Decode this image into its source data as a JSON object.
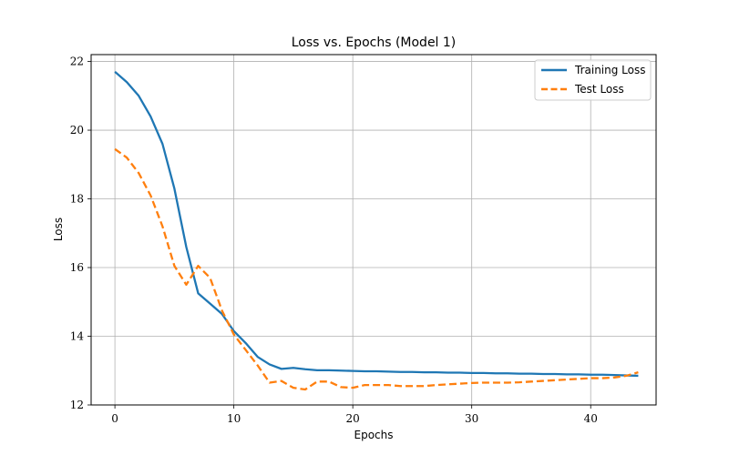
{
  "chart_data": {
    "type": "line",
    "title": "Loss vs. Epochs (Model 1)",
    "xlabel": "Epochs",
    "ylabel": "Loss",
    "xlim": [
      -2,
      45.5
    ],
    "ylim": [
      12,
      22.2
    ],
    "xticks": [
      0,
      10,
      20,
      30,
      40
    ],
    "yticks": [
      12,
      14,
      16,
      18,
      20,
      22
    ],
    "grid": true,
    "legend_position": "top-right",
    "x": [
      0,
      1,
      2,
      3,
      4,
      5,
      6,
      7,
      8,
      9,
      10,
      11,
      12,
      13,
      14,
      15,
      16,
      17,
      18,
      19,
      20,
      21,
      22,
      23,
      24,
      25,
      26,
      27,
      28,
      29,
      30,
      31,
      32,
      33,
      34,
      35,
      36,
      37,
      38,
      39,
      40,
      41,
      42,
      43,
      44
    ],
    "series": [
      {
        "name": "Training Loss",
        "color": "#1f77b4",
        "dash": "solid",
        "values": [
          21.7,
          21.4,
          21.0,
          20.4,
          19.6,
          18.3,
          16.6,
          15.25,
          14.95,
          14.65,
          14.15,
          13.8,
          13.4,
          13.18,
          13.05,
          13.08,
          13.04,
          13.01,
          13.01,
          13.0,
          12.99,
          12.98,
          12.98,
          12.97,
          12.96,
          12.96,
          12.95,
          12.95,
          12.94,
          12.94,
          12.93,
          12.93,
          12.92,
          12.92,
          12.91,
          12.91,
          12.9,
          12.9,
          12.89,
          12.89,
          12.88,
          12.88,
          12.87,
          12.86,
          12.85
        ]
      },
      {
        "name": "Test Loss",
        "color": "#ff7f0e",
        "dash": "dashed",
        "values": [
          19.45,
          19.2,
          18.75,
          18.1,
          17.2,
          16.05,
          15.5,
          16.05,
          15.7,
          14.75,
          14.05,
          13.6,
          13.15,
          12.65,
          12.7,
          12.5,
          12.45,
          12.68,
          12.68,
          12.52,
          12.5,
          12.58,
          12.58,
          12.58,
          12.55,
          12.55,
          12.55,
          12.58,
          12.6,
          12.62,
          12.64,
          12.65,
          12.65,
          12.65,
          12.66,
          12.68,
          12.7,
          12.72,
          12.74,
          12.76,
          12.78,
          12.78,
          12.8,
          12.85,
          12.95
        ]
      }
    ]
  }
}
